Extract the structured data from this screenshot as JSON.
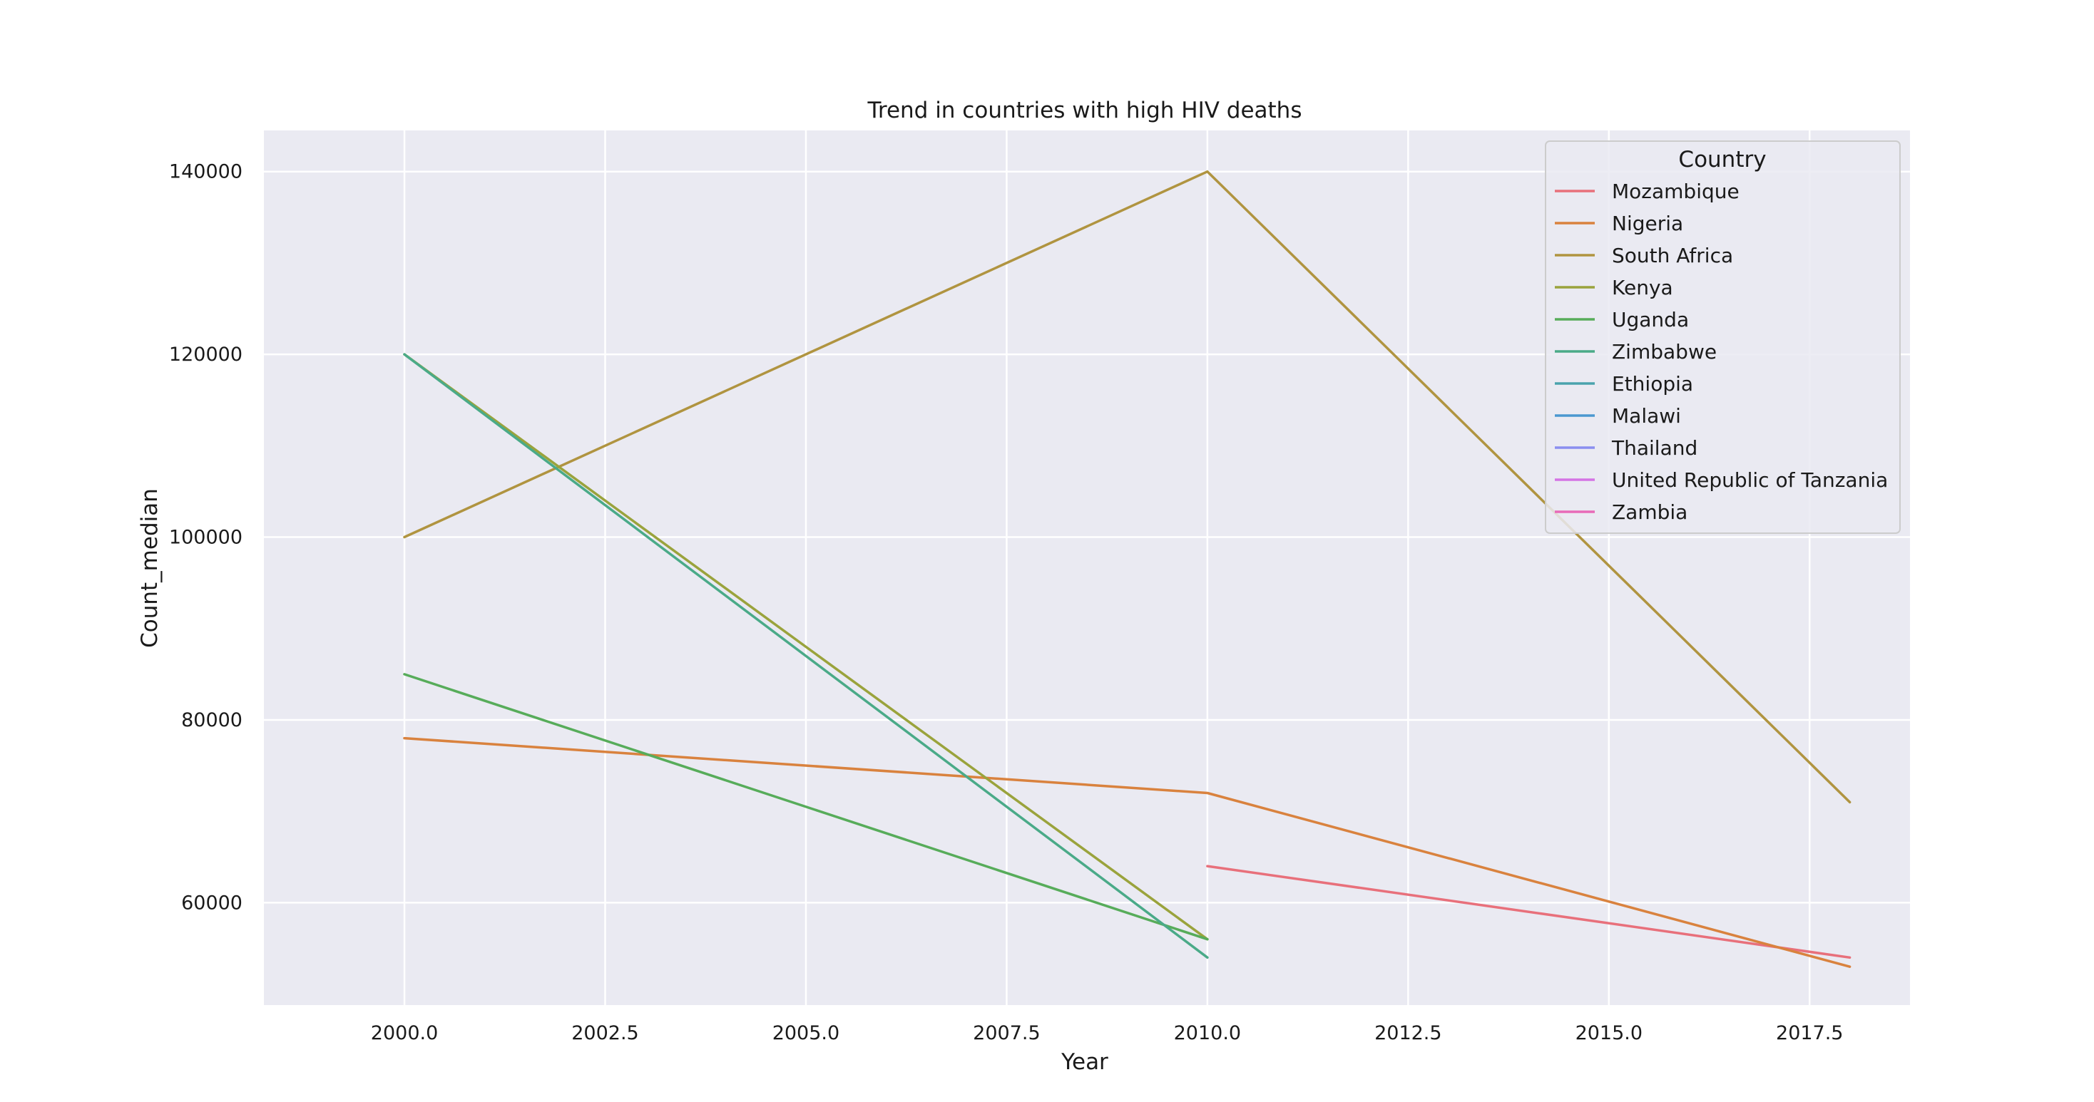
{
  "chart_data": {
    "type": "line",
    "title": "Trend in countries with high HIV deaths",
    "xlabel": "Year",
    "ylabel": "Count_median",
    "xlim": [
      1998.25,
      2018.75
    ],
    "ylim": [
      48800,
      144500
    ],
    "x_ticks": [
      2000.0,
      2002.5,
      2005.0,
      2007.5,
      2010.0,
      2012.5,
      2015.0,
      2017.5
    ],
    "x_tick_labels": [
      "2000.0",
      "2002.5",
      "2005.0",
      "2007.5",
      "2010.0",
      "2012.5",
      "2015.0",
      "2017.5"
    ],
    "y_ticks": [
      60000,
      80000,
      100000,
      120000,
      140000
    ],
    "y_tick_labels": [
      "60000",
      "80000",
      "100000",
      "120000",
      "140000"
    ],
    "grid": true,
    "background": "#eaeaf2",
    "legend": {
      "title": "Country",
      "position": "top-right"
    },
    "series": [
      {
        "name": "Mozambique",
        "color": "#e8707b",
        "x": [
          2010,
          2018
        ],
        "y": [
          64000,
          54000
        ]
      },
      {
        "name": "Nigeria",
        "color": "#d9823e",
        "x": [
          2000,
          2010,
          2018
        ],
        "y": [
          78000,
          72000,
          53000
        ]
      },
      {
        "name": "South Africa",
        "color": "#b09440",
        "x": [
          2000,
          2010,
          2018
        ],
        "y": [
          100000,
          140000,
          71000
        ]
      },
      {
        "name": "Kenya",
        "color": "#9aa33c",
        "x": [
          2000,
          2010
        ],
        "y": [
          120000,
          56000
        ]
      },
      {
        "name": "Uganda",
        "color": "#57ac5a",
        "x": [
          2000,
          2010
        ],
        "y": [
          85000,
          56000
        ]
      },
      {
        "name": "Zimbabwe",
        "color": "#4aaa88",
        "x": [
          2000,
          2010
        ],
        "y": [
          120000,
          54000
        ]
      },
      {
        "name": "Ethiopia",
        "color": "#4aa3ad",
        "x": [],
        "y": []
      },
      {
        "name": "Malawi",
        "color": "#4b98d0",
        "x": [],
        "y": []
      },
      {
        "name": "Thailand",
        "color": "#8a8ef0",
        "x": [],
        "y": []
      },
      {
        "name": "United Republic of Tanzania",
        "color": "#d574e4",
        "x": [],
        "y": []
      },
      {
        "name": "Zambia",
        "color": "#e86ab8",
        "x": [],
        "y": []
      }
    ]
  }
}
